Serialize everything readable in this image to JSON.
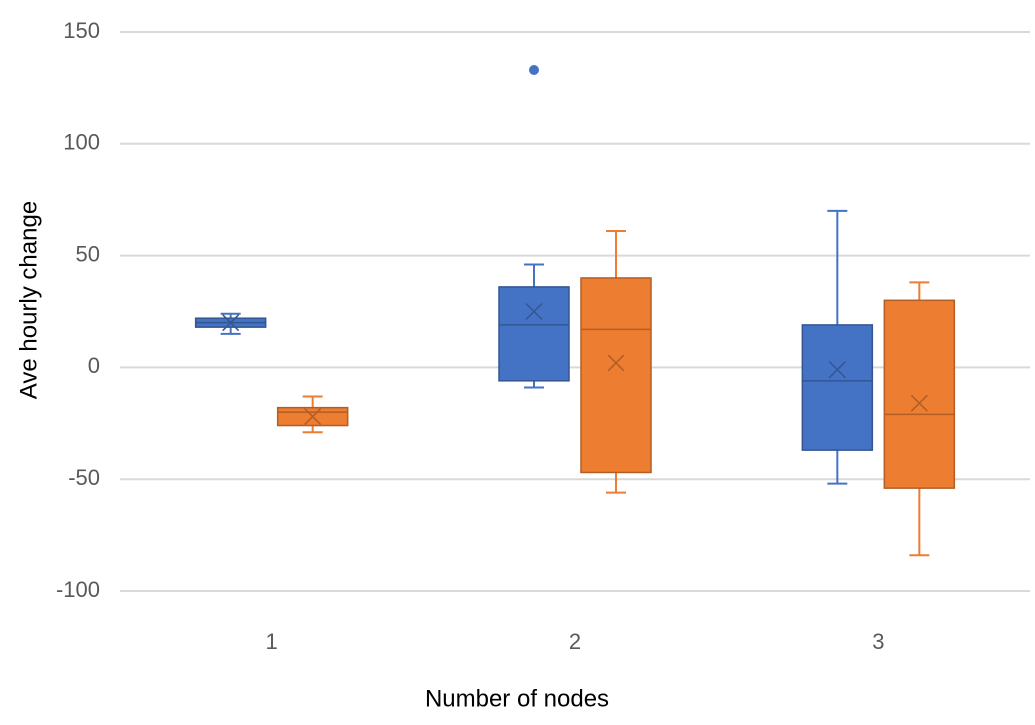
{
  "chart_data": {
    "type": "box",
    "x_label": "Number of nodes",
    "y_label": "Ave hourly change",
    "categories": [
      "1",
      "2",
      "3"
    ],
    "ylim": [
      -100,
      150
    ],
    "yticks": [
      150,
      100,
      50,
      0,
      -50,
      -100
    ],
    "grid": true,
    "series": [
      {
        "color": "#4472c4",
        "min": [
          15,
          -9,
          -52
        ],
        "q1": [
          18,
          -6,
          -37
        ],
        "median": [
          20,
          19,
          -6
        ],
        "q3": [
          22,
          36,
          19
        ],
        "max": [
          24,
          46,
          70
        ],
        "mean": [
          20,
          25,
          -1
        ],
        "outliers": [
          [],
          [
            133
          ],
          []
        ]
      },
      {
        "color": "#ed7d31",
        "min": [
          -29,
          -56,
          -84
        ],
        "q1": [
          -26,
          -47,
          -54
        ],
        "median": [
          -20,
          17,
          -21
        ],
        "q3": [
          -18,
          40,
          30
        ],
        "max": [
          -13,
          61,
          38
        ],
        "mean": [
          -22,
          2,
          -16
        ]
      }
    ]
  }
}
